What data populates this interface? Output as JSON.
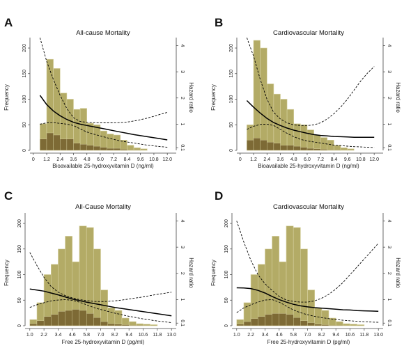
{
  "figure": {
    "colors": {
      "hist_fill": "#b3ab66",
      "hist_stroke": "#d7d2a2",
      "subhist_fill": "#7d6a35",
      "curve": "#000000",
      "axis": "#444444"
    }
  },
  "chart_data": [
    {
      "letter": "A",
      "type": "bar",
      "title": "All-cause Mortality",
      "xlabel": "Bioavailable 25-hydroxyvitamin D (ng/ml)",
      "ylabel": "Frequency",
      "y2label": "Hazard ratio",
      "xlim": [
        -0.3,
        12.8
      ],
      "ylim": [
        0,
        215
      ],
      "y2lim": [
        0,
        4.2
      ],
      "xticks": [
        "0",
        "1.2",
        "2.4",
        "3.6",
        "4.8",
        "6.0",
        "7.2",
        "8.4",
        "9.6",
        "10.8",
        "12.0"
      ],
      "xtick_values": [
        0,
        1.2,
        2.4,
        3.6,
        4.8,
        6.0,
        7.2,
        8.4,
        9.6,
        10.8,
        12.0
      ],
      "yticks": [
        "0",
        "50",
        "100",
        "150",
        "200"
      ],
      "ytick_values": [
        0,
        50,
        100,
        150,
        200
      ],
      "y2ticks": [
        "0.1",
        "1",
        "2",
        "3",
        "4"
      ],
      "y2tick_values": [
        0.1,
        1,
        2,
        3,
        4
      ],
      "bin_edges": [
        0.6,
        1.2,
        1.8,
        2.4,
        3.0,
        3.6,
        4.2,
        4.8,
        5.4,
        6.0,
        6.6,
        7.2,
        7.8,
        8.4,
        9.0,
        9.6,
        10.2
      ],
      "histogram": [
        52,
        178,
        160,
        112,
        100,
        80,
        82,
        53,
        50,
        38,
        32,
        30,
        20,
        10,
        5,
        3
      ],
      "event_histogram": [
        22,
        34,
        30,
        22,
        22,
        14,
        12,
        10,
        8,
        6,
        4,
        4,
        2,
        1,
        1,
        0
      ],
      "hr_x": [
        0.6,
        1.2,
        1.8,
        2.4,
        3.0,
        3.6,
        4.2,
        4.8,
        5.4,
        6.0,
        6.6,
        7.2,
        7.8,
        8.4,
        9.0,
        9.6,
        10.2,
        10.8,
        11.4,
        12.0
      ],
      "hr": [
        2.1,
        1.75,
        1.5,
        1.32,
        1.18,
        1.07,
        1.0,
        0.95,
        0.9,
        0.85,
        0.8,
        0.75,
        0.7,
        0.65,
        0.6,
        0.56,
        0.52,
        0.48,
        0.44,
        0.4
      ],
      "hr_upper": [
        4.3,
        3.4,
        2.7,
        2.1,
        1.6,
        1.25,
        1.1,
        1.07,
        1.06,
        1.05,
        1.05,
        1.05,
        1.06,
        1.08,
        1.12,
        1.17,
        1.23,
        1.3,
        1.38,
        1.45
      ],
      "hr_lower": [
        1.0,
        1.05,
        1.06,
        1.03,
        1.0,
        0.95,
        0.82,
        0.7,
        0.62,
        0.55,
        0.48,
        0.42,
        0.36,
        0.32,
        0.28,
        0.24,
        0.2,
        0.17,
        0.14,
        0.12
      ]
    },
    {
      "letter": "B",
      "type": "bar",
      "title": "Cardiovascular Mortality",
      "xlabel": "Bioavailable 25-hydroxyvitamin D (ng/ml)",
      "ylabel": "Frequency",
      "y2label": "Hazard ratio",
      "xlim": [
        -0.3,
        12.8
      ],
      "ylim": [
        0,
        215
      ],
      "y2lim": [
        0,
        4.2
      ],
      "xticks": [
        "0",
        "1.2",
        "2.4",
        "3.6",
        "4.8",
        "6.0",
        "7.2",
        "8.4",
        "9.6",
        "10.8",
        "12.0"
      ],
      "xtick_values": [
        0,
        1.2,
        2.4,
        3.6,
        4.8,
        6.0,
        7.2,
        8.4,
        9.6,
        10.8,
        12.0
      ],
      "yticks": [
        "0",
        "50",
        "100",
        "150",
        "200"
      ],
      "ytick_values": [
        0,
        50,
        100,
        150,
        200
      ],
      "y2ticks": [
        "0.1",
        "1",
        "2",
        "3",
        "4"
      ],
      "y2tick_values": [
        0.1,
        1,
        2,
        3,
        4
      ],
      "bin_edges": [
        0.6,
        1.2,
        1.8,
        2.4,
        3.0,
        3.6,
        4.2,
        4.8,
        5.4,
        6.0,
        6.6,
        7.2,
        7.8,
        8.4,
        9.0,
        9.6,
        10.2
      ],
      "histogram": [
        50,
        215,
        200,
        130,
        110,
        100,
        80,
        52,
        50,
        40,
        30,
        25,
        20,
        10,
        5,
        3
      ],
      "event_histogram": [
        20,
        24,
        20,
        16,
        14,
        10,
        10,
        8,
        6,
        4,
        3,
        2,
        1,
        1,
        0,
        0
      ],
      "hr_x": [
        0.6,
        1.2,
        1.8,
        2.4,
        3.0,
        3.6,
        4.2,
        4.8,
        5.4,
        6.0,
        6.6,
        7.2,
        7.8,
        8.4,
        9.0,
        9.6,
        10.2,
        10.8,
        11.4,
        12.0
      ],
      "hr": [
        1.9,
        1.65,
        1.42,
        1.22,
        1.06,
        0.95,
        0.85,
        0.77,
        0.71,
        0.65,
        0.6,
        0.57,
        0.55,
        0.53,
        0.52,
        0.51,
        0.5,
        0.5,
        0.5,
        0.5
      ],
      "hr_upper": [
        4.3,
        3.6,
        2.7,
        1.95,
        1.45,
        1.2,
        1.05,
        0.97,
        0.95,
        0.95,
        0.97,
        1.05,
        1.2,
        1.4,
        1.65,
        1.95,
        2.3,
        2.65,
        2.95,
        3.2
      ],
      "hr_lower": [
        0.8,
        0.92,
        0.99,
        1.0,
        0.95,
        0.8,
        0.65,
        0.52,
        0.42,
        0.36,
        0.32,
        0.28,
        0.24,
        0.2,
        0.18,
        0.16,
        0.14,
        0.13,
        0.12,
        0.11
      ]
    },
    {
      "letter": "C",
      "type": "bar",
      "title": "All-Cause Mortality",
      "xlabel": "Free 25-hydroxyvitamin D (pg/ml)",
      "ylabel": "Frequency",
      "y2label": "Hazard ratio",
      "xlim": [
        0.6,
        13.4
      ],
      "ylim": [
        0,
        215
      ],
      "y2lim": [
        0,
        4.2
      ],
      "xticks": [
        "1.0",
        "2.2",
        "3.4",
        "4.6",
        "5.8",
        "7.0",
        "8.2",
        "9.4",
        "10.6",
        "11.8",
        "13.0"
      ],
      "xtick_values": [
        1.0,
        2.2,
        3.4,
        4.6,
        5.8,
        7.0,
        8.2,
        9.4,
        10.6,
        11.8,
        13.0
      ],
      "yticks": [
        "0",
        "50",
        "100",
        "150",
        "200"
      ],
      "ytick_values": [
        0,
        50,
        100,
        150,
        200
      ],
      "y2ticks": [
        "0.1",
        "1",
        "2",
        "3",
        "4"
      ],
      "y2tick_values": [
        0.1,
        1,
        2,
        3,
        4
      ],
      "bin_edges": [
        1.0,
        1.6,
        2.2,
        2.8,
        3.4,
        4.0,
        4.6,
        5.2,
        5.8,
        6.4,
        7.0,
        7.6,
        8.2,
        8.8,
        9.4,
        10.0,
        10.6,
        11.2,
        11.8
      ],
      "histogram": [
        12,
        45,
        100,
        120,
        150,
        175,
        125,
        195,
        192,
        150,
        70,
        35,
        30,
        15,
        8,
        4,
        3,
        2
      ],
      "event_histogram": [
        4,
        10,
        18,
        22,
        28,
        30,
        32,
        30,
        24,
        16,
        8,
        4,
        3,
        2,
        1,
        1,
        0,
        0
      ],
      "hr_x": [
        1.0,
        1.6,
        2.2,
        2.8,
        3.4,
        4.0,
        4.6,
        5.2,
        5.8,
        6.4,
        7.0,
        7.6,
        8.2,
        8.8,
        9.4,
        10.0,
        10.6,
        11.2,
        11.8,
        12.4,
        13.0
      ],
      "hr": [
        1.4,
        1.36,
        1.32,
        1.25,
        1.18,
        1.1,
        1.02,
        0.96,
        0.9,
        0.85,
        0.8,
        0.75,
        0.7,
        0.66,
        0.62,
        0.58,
        0.54,
        0.5,
        0.46,
        0.42,
        0.38
      ],
      "hr_upper": [
        2.8,
        2.3,
        1.85,
        1.5,
        1.28,
        1.15,
        1.06,
        1.0,
        0.96,
        0.93,
        0.92,
        0.93,
        0.95,
        0.98,
        1.02,
        1.06,
        1.1,
        1.15,
        1.2,
        1.24,
        1.28
      ],
      "hr_lower": [
        0.7,
        0.8,
        0.88,
        0.95,
        0.98,
        1.0,
        0.97,
        0.9,
        0.8,
        0.7,
        0.62,
        0.55,
        0.48,
        0.42,
        0.36,
        0.31,
        0.26,
        0.22,
        0.18,
        0.15,
        0.12
      ]
    },
    {
      "letter": "D",
      "type": "bar",
      "title": "Cardiovascular Mortality",
      "xlabel": "Free 25-hydroxyvitamin D (pg/ml)",
      "ylabel": "Frequency",
      "y2label": "Hazard ratio",
      "xlim": [
        0.6,
        13.4
      ],
      "ylim": [
        0,
        215
      ],
      "y2lim": [
        0,
        4.2
      ],
      "xticks": [
        "1.0",
        "2.2",
        "3.4",
        "4.6",
        "5.8",
        "7.0",
        "8.2",
        "9.4",
        "10.6",
        "11.8",
        "13.0"
      ],
      "xtick_values": [
        1.0,
        2.2,
        3.4,
        4.6,
        5.8,
        7.0,
        8.2,
        9.4,
        10.6,
        11.8,
        13.0
      ],
      "yticks": [
        "0",
        "50",
        "100",
        "150",
        "200"
      ],
      "ytick_values": [
        0,
        50,
        100,
        150,
        200
      ],
      "y2ticks": [
        "0.1",
        "1",
        "2",
        "3",
        "4"
      ],
      "y2tick_values": [
        0.1,
        1,
        2,
        3,
        4
      ],
      "bin_edges": [
        1.0,
        1.6,
        2.2,
        2.8,
        3.4,
        4.0,
        4.6,
        5.2,
        5.8,
        6.4,
        7.0,
        7.6,
        8.2,
        8.8,
        9.4,
        10.0,
        10.6,
        11.2,
        11.8
      ],
      "histogram": [
        12,
        45,
        100,
        120,
        150,
        175,
        125,
        195,
        192,
        150,
        70,
        35,
        30,
        15,
        8,
        4,
        3,
        2
      ],
      "event_histogram": [
        3,
        8,
        14,
        18,
        22,
        24,
        24,
        22,
        16,
        10,
        6,
        3,
        2,
        1,
        1,
        0,
        0,
        0
      ],
      "hr_x": [
        1.0,
        1.6,
        2.2,
        2.8,
        3.4,
        4.0,
        4.6,
        5.2,
        5.8,
        6.4,
        7.0,
        7.6,
        8.2,
        8.8,
        9.4,
        10.0,
        10.6,
        11.2,
        11.8,
        12.4,
        13.0
      ],
      "hr": [
        1.45,
        1.44,
        1.42,
        1.35,
        1.25,
        1.12,
        1.0,
        0.9,
        0.82,
        0.76,
        0.72,
        0.69,
        0.67,
        0.65,
        0.63,
        0.61,
        0.6,
        0.58,
        0.57,
        0.56,
        0.55
      ],
      "hr_upper": [
        4.0,
        3.2,
        2.5,
        1.95,
        1.6,
        1.35,
        1.12,
        0.98,
        0.93,
        0.9,
        0.9,
        0.95,
        1.05,
        1.2,
        1.4,
        1.65,
        1.95,
        2.25,
        2.55,
        2.85,
        3.15
      ],
      "hr_lower": [
        0.5,
        0.68,
        0.8,
        0.9,
        0.98,
        1.0,
        0.9,
        0.75,
        0.6,
        0.5,
        0.42,
        0.36,
        0.31,
        0.27,
        0.24,
        0.21,
        0.19,
        0.17,
        0.15,
        0.14,
        0.13
      ]
    }
  ]
}
